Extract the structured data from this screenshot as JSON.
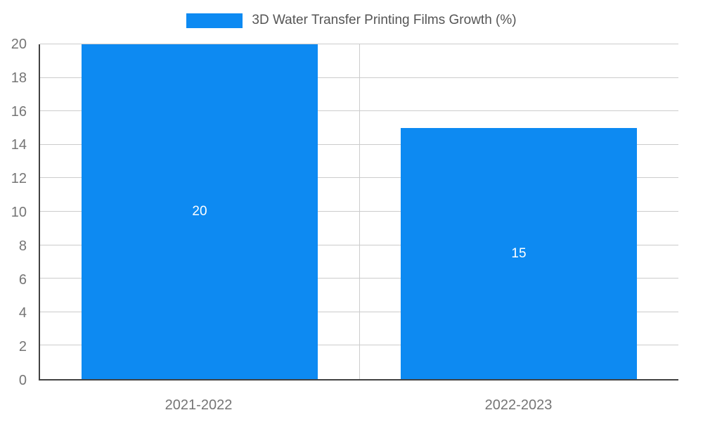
{
  "chart_data": {
    "type": "bar",
    "title": "3D Water Transfer Printing Films Growth (%)",
    "categories": [
      "2021-2022",
      "2022-2023"
    ],
    "values": [
      20,
      15
    ],
    "value_labels": [
      "20",
      "15"
    ],
    "xlabel": "",
    "ylabel": "",
    "ylim": [
      0,
      20
    ],
    "yticks": [
      0,
      2,
      4,
      6,
      8,
      10,
      12,
      14,
      16,
      18,
      20
    ],
    "grid": true,
    "legend_position": "top",
    "bar_color": "#0d8af2",
    "value_label_color": "#ffffff",
    "axis_color": "#424242",
    "gridline_color": "#cccccc",
    "tick_label_color": "#757575",
    "title_color": "#555555",
    "background": "#ffffff"
  }
}
